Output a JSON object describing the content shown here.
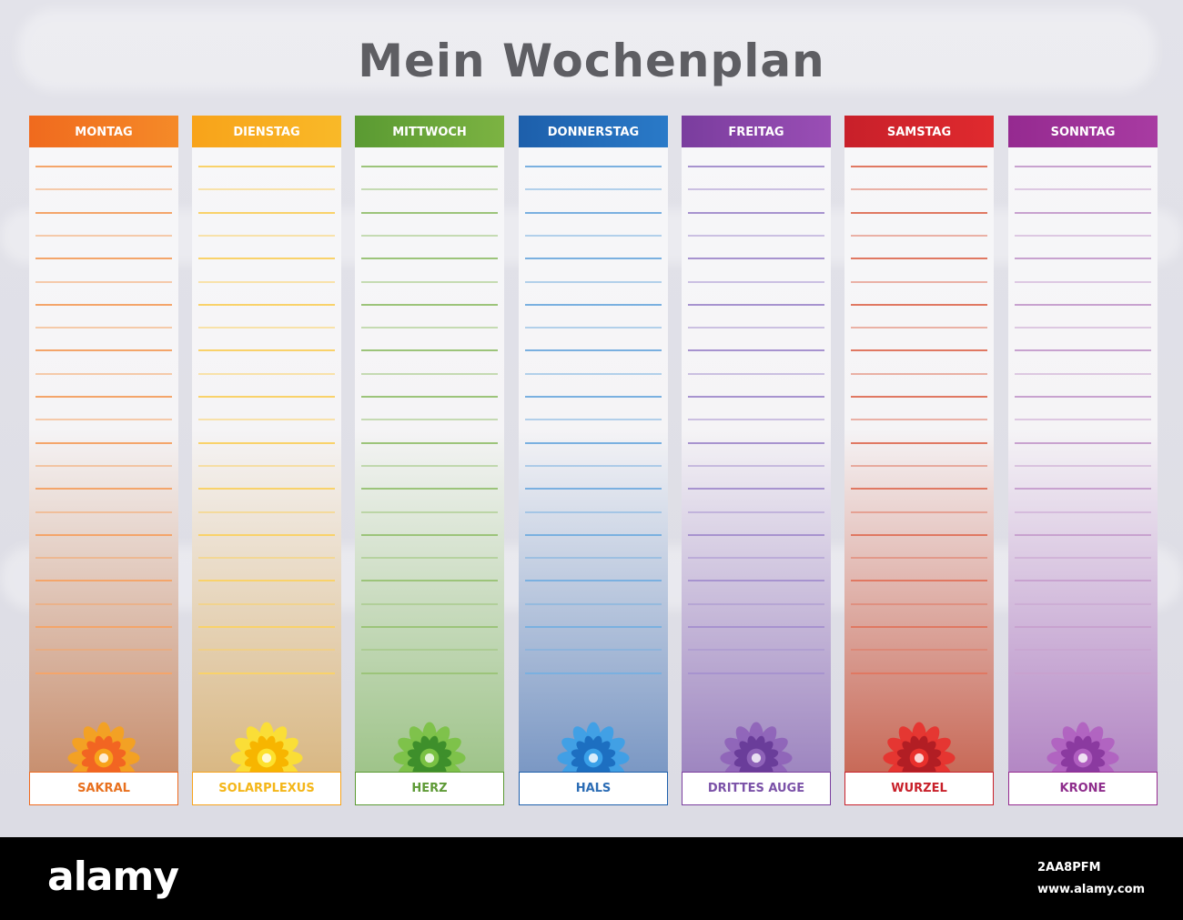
{
  "title": "Mein Wochenplan",
  "days": [
    {
      "day": "MONTAG",
      "chakra": "SAKRAL",
      "color": "#f06a1e",
      "color2": "#f58a28",
      "line": "#f4a56a",
      "tint": "#c89070",
      "text": "#e8701e",
      "flower": "orange-mandala-icon",
      "petal": "#f7a21b",
      "center": "#f26522"
    },
    {
      "day": "DIENSTAG",
      "chakra": "SOLARPLEXUS",
      "color": "#f8a31a",
      "color2": "#f9b928",
      "line": "#f9d26a",
      "tint": "#d9b884",
      "text": "#f4b619",
      "flower": "yellow-mandala-icon",
      "petal": "#fde12d",
      "center": "#f7b500"
    },
    {
      "day": "MITTWOCH",
      "chakra": "HERZ",
      "color": "#5a9a32",
      "color2": "#7cb342",
      "line": "#9cc47a",
      "tint": "#9fc48a",
      "text": "#5e9a36",
      "flower": "green-mandala-icon",
      "petal": "#7ac143",
      "center": "#3e8f2b"
    },
    {
      "day": "DONNERSTAG",
      "chakra": "HALS",
      "color": "#1d5fab",
      "color2": "#2a7ac8",
      "line": "#7ab0e0",
      "tint": "#7b98c4",
      "text": "#2c6db5",
      "flower": "blue-mandala-icon",
      "petal": "#3aa0e8",
      "center": "#1d6fc1"
    },
    {
      "day": "FREITAG",
      "chakra": "DRITTES AUGE",
      "color": "#7a3d9e",
      "color2": "#9a4eb5",
      "line": "#a793cf",
      "tint": "#9e86c0",
      "text": "#7b52a8",
      "flower": "violet-mandala-icon",
      "petal": "#8e62b8",
      "center": "#6a3d9a"
    },
    {
      "day": "SAMSTAG",
      "chakra": "WURZEL",
      "color": "#c8202a",
      "color2": "#e02a2e",
      "line": "#e07862",
      "tint": "#c86a58",
      "text": "#c8202a",
      "flower": "red-mandala-icon",
      "petal": "#e8302c",
      "center": "#b21e24"
    },
    {
      "day": "SONNTAG",
      "chakra": "KRONE",
      "color": "#952a90",
      "color2": "#a83ba2",
      "line": "#c8a2cf",
      "tint": "#b387c4",
      "text": "#8e2d8c",
      "flower": "purple-mandala-icon",
      "petal": "#b05fc0",
      "center": "#8b3aa0"
    }
  ],
  "lines_per_column": 23,
  "footer": {
    "logo": "alamy",
    "code": "2AA8PFM",
    "url": "www.alamy.com"
  }
}
